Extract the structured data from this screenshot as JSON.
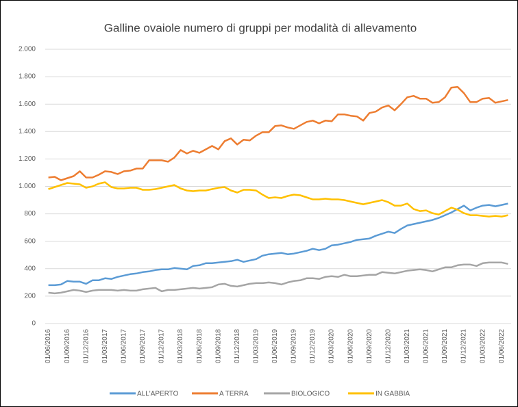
{
  "chart_data": {
    "type": "line",
    "title": "Galline ovaiole numero di gruppi per modalità di allevamento",
    "categories": [
      "01/06/2016",
      null,
      null,
      "01/09/2016",
      null,
      null,
      "01/12/2016",
      null,
      null,
      "01/03/2017",
      null,
      null,
      "01/06/2017",
      null,
      null,
      "01/09/2017",
      null,
      null,
      "01/12/2017",
      null,
      null,
      "01/03/2018",
      null,
      null,
      "01/06/2018",
      null,
      null,
      "01/09/2018",
      null,
      null,
      "01/12/2018",
      null,
      null,
      "01/03/2019",
      null,
      null,
      "01/06/2019",
      null,
      null,
      "01/09/2019",
      null,
      null,
      "01/12/2019",
      null,
      null,
      "01/03/2020",
      null,
      null,
      "01/06/2020",
      null,
      null,
      "01/09/2020",
      null,
      null,
      "01/12/2020",
      null,
      null,
      "01/03/2021",
      null,
      null,
      "01/06/2021",
      null,
      null,
      "01/09/2021",
      null,
      null,
      "01/12/2021",
      null,
      null,
      "01/03/2022",
      null,
      null,
      "01/06/2022",
      null
    ],
    "series": [
      {
        "name": "ALL'APERTO",
        "color": "#5b9bd5",
        "values": [
          280,
          280,
          285,
          310,
          305,
          305,
          290,
          315,
          315,
          330,
          325,
          340,
          350,
          360,
          365,
          375,
          380,
          390,
          395,
          395,
          405,
          400,
          395,
          420,
          425,
          440,
          440,
          445,
          450,
          455,
          465,
          450,
          460,
          470,
          495,
          505,
          510,
          515,
          505,
          510,
          520,
          530,
          545,
          535,
          545,
          570,
          575,
          585,
          595,
          610,
          615,
          620,
          640,
          655,
          670,
          660,
          690,
          715,
          725,
          735,
          745,
          755,
          770,
          790,
          810,
          835,
          860,
          825,
          845,
          860,
          865,
          855,
          865,
          875
        ]
      },
      {
        "name": "A TERRA",
        "color": "#ed7d31",
        "values": [
          1065,
          1070,
          1045,
          1060,
          1075,
          1110,
          1065,
          1065,
          1085,
          1110,
          1105,
          1090,
          1110,
          1115,
          1130,
          1130,
          1190,
          1190,
          1190,
          1180,
          1210,
          1265,
          1240,
          1260,
          1245,
          1270,
          1295,
          1270,
          1330,
          1350,
          1305,
          1340,
          1335,
          1370,
          1395,
          1395,
          1440,
          1445,
          1430,
          1420,
          1445,
          1470,
          1480,
          1460,
          1480,
          1475,
          1525,
          1525,
          1515,
          1510,
          1480,
          1535,
          1545,
          1575,
          1590,
          1555,
          1600,
          1650,
          1660,
          1640,
          1640,
          1610,
          1615,
          1650,
          1720,
          1725,
          1680,
          1615,
          1615,
          1640,
          1645,
          1610,
          1620,
          1630
        ]
      },
      {
        "name": "BIOLOGICO",
        "color": "#a5a5a5",
        "values": [
          225,
          220,
          225,
          235,
          245,
          240,
          230,
          240,
          245,
          245,
          245,
          240,
          245,
          240,
          240,
          250,
          255,
          260,
          235,
          245,
          245,
          250,
          255,
          260,
          255,
          260,
          265,
          285,
          290,
          275,
          270,
          280,
          290,
          295,
          295,
          300,
          295,
          285,
          300,
          310,
          315,
          330,
          330,
          325,
          340,
          345,
          340,
          355,
          345,
          345,
          350,
          355,
          355,
          375,
          370,
          365,
          375,
          385,
          390,
          395,
          390,
          380,
          395,
          410,
          410,
          425,
          430,
          430,
          420,
          440,
          445,
          445,
          445,
          435
        ]
      },
      {
        "name": "IN GABBIA",
        "color": "#ffc000",
        "values": [
          980,
          995,
          1010,
          1025,
          1020,
          1015,
          990,
          1000,
          1020,
          1030,
          995,
          985,
          985,
          990,
          990,
          975,
          975,
          980,
          990,
          1000,
          1010,
          985,
          970,
          965,
          970,
          970,
          980,
          990,
          995,
          970,
          955,
          975,
          975,
          970,
          940,
          915,
          920,
          915,
          930,
          940,
          935,
          920,
          905,
          905,
          910,
          905,
          905,
          900,
          890,
          880,
          870,
          880,
          890,
          900,
          885,
          860,
          860,
          875,
          835,
          820,
          825,
          805,
          795,
          820,
          845,
          830,
          805,
          790,
          790,
          785,
          780,
          785,
          780,
          790
        ]
      }
    ],
    "ylim": [
      0,
      2000
    ],
    "yticks": [
      0,
      200,
      400,
      600,
      800,
      {
        "value": 1000,
        "label": "1.000"
      },
      {
        "value": 1200,
        "label": "1.200"
      },
      {
        "value": 1400,
        "label": "1.400"
      },
      {
        "value": 1600,
        "label": "1.600"
      },
      {
        "value": 1800,
        "label": "1.800"
      },
      {
        "value": 2000,
        "label": "2.000"
      }
    ],
    "grid": true,
    "legend": "bottom"
  }
}
